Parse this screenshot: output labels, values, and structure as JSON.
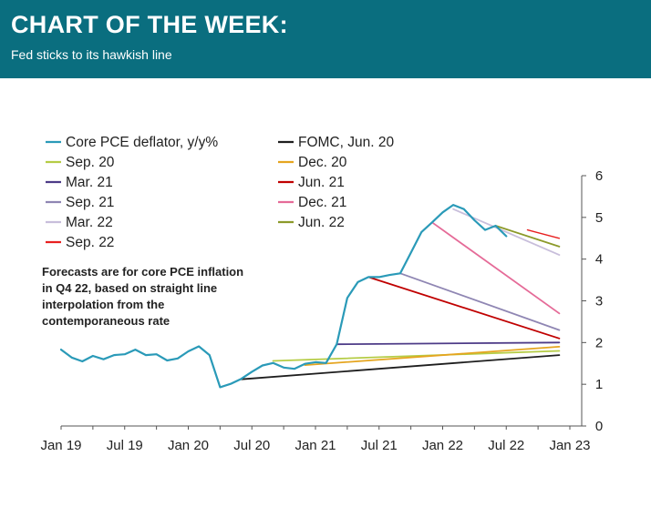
{
  "header": {
    "title": "CHART OF THE WEEK:",
    "subtitle": "Fed sticks to its hawkish line"
  },
  "note": [
    "Forecasts are for core PCE inflation",
    "in Q4 22, based on straight line",
    "interpolation from the",
    "contemporaneous rate"
  ],
  "chart_data": {
    "type": "line",
    "title": "",
    "xlabel": "",
    "ylabel": "",
    "x_ticks": [
      "Jan 19",
      "Jul 19",
      "Jan 20",
      "Jul 20",
      "Jan 21",
      "Jul 21",
      "Jan 22",
      "Jul 22",
      "Jan 23"
    ],
    "ylim": [
      0,
      6
    ],
    "y_ticks": [
      0,
      1,
      2,
      3,
      4,
      5,
      6
    ],
    "y_axis_side": "right",
    "grid": false,
    "legend": "top-left, two columns",
    "series": [
      {
        "name": "Core PCE deflator, y/y%",
        "color": "#2a9ab8",
        "width": 2.2,
        "x": [
          "2019-01",
          "2019-02",
          "2019-03",
          "2019-04",
          "2019-05",
          "2019-06",
          "2019-07",
          "2019-08",
          "2019-09",
          "2019-10",
          "2019-11",
          "2019-12",
          "2020-01",
          "2020-02",
          "2020-03",
          "2020-04",
          "2020-05",
          "2020-06",
          "2020-07",
          "2020-08",
          "2020-09",
          "2020-10",
          "2020-11",
          "2020-12",
          "2021-01",
          "2021-02",
          "2021-03",
          "2021-04",
          "2021-05",
          "2021-06",
          "2021-07",
          "2021-08",
          "2021-09",
          "2021-10",
          "2021-11",
          "2021-12",
          "2022-01",
          "2022-02",
          "2022-03",
          "2022-04",
          "2022-05",
          "2022-06",
          "2022-07"
        ],
        "values": [
          1.83,
          1.64,
          1.55,
          1.68,
          1.6,
          1.7,
          1.72,
          1.83,
          1.7,
          1.72,
          1.57,
          1.62,
          1.79,
          1.91,
          1.7,
          0.93,
          1.01,
          1.13,
          1.3,
          1.45,
          1.51,
          1.4,
          1.37,
          1.49,
          1.53,
          1.51,
          1.96,
          3.07,
          3.45,
          3.57,
          3.57,
          3.62,
          3.66,
          4.15,
          4.65,
          4.88,
          5.12,
          5.3,
          5.2,
          4.93,
          4.7,
          4.8,
          4.55
        ]
      },
      {
        "name": "FOMC, Jun. 20",
        "color": "#1e1e1e",
        "width": 1.8,
        "x": [
          "2020-06",
          "2022-12"
        ],
        "values": [
          1.12,
          1.7
        ]
      },
      {
        "name": "Sep. 20",
        "color": "#b5cc45",
        "width": 1.8,
        "x": [
          "2020-09",
          "2022-12"
        ],
        "values": [
          1.56,
          1.8
        ]
      },
      {
        "name": "Dec. 20",
        "color": "#e5a51f",
        "width": 1.8,
        "x": [
          "2020-12",
          "2022-12"
        ],
        "values": [
          1.46,
          1.9
        ]
      },
      {
        "name": "Mar. 21",
        "color": "#4d3b87",
        "width": 1.8,
        "x": [
          "2021-03",
          "2022-12"
        ],
        "values": [
          1.96,
          2.0
        ]
      },
      {
        "name": "Jun. 21",
        "color": "#c00000",
        "width": 1.8,
        "x": [
          "2021-06",
          "2022-12"
        ],
        "values": [
          3.57,
          2.1
        ]
      },
      {
        "name": "Sep. 21",
        "color": "#8f86b3",
        "width": 1.8,
        "x": [
          "2021-09",
          "2022-12"
        ],
        "values": [
          3.66,
          2.3
        ]
      },
      {
        "name": "Dec. 21",
        "color": "#e56b98",
        "width": 1.8,
        "x": [
          "2021-12",
          "2022-12"
        ],
        "values": [
          4.88,
          2.7
        ]
      },
      {
        "name": "Mar. 22",
        "color": "#c8bedb",
        "width": 1.8,
        "x": [
          "2022-02",
          "2022-12"
        ],
        "values": [
          5.2,
          4.1
        ]
      },
      {
        "name": "Jun. 22",
        "color": "#8c9a2a",
        "width": 1.8,
        "x": [
          "2022-06",
          "2022-12"
        ],
        "values": [
          4.8,
          4.3
        ]
      },
      {
        "name": "Sep. 22",
        "color": "#e82020",
        "width": 1.4,
        "x": [
          "2022-09",
          "2022-12"
        ],
        "values": [
          4.7,
          4.5
        ]
      }
    ]
  }
}
